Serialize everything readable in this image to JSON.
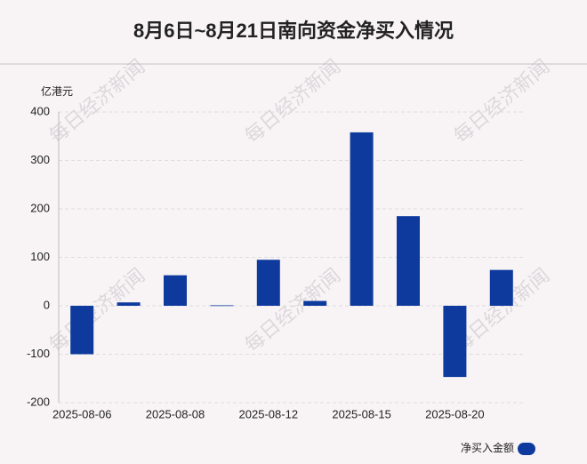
{
  "chart_data": {
    "type": "bar",
    "title": "8月6日~8月21日南向资金净买入情况",
    "y_label": "亿港元",
    "watermark": "每日经济新闻",
    "categories": [
      "2025-08-06",
      null,
      "2025-08-08",
      null,
      "2025-08-12",
      null,
      "2025-08-15",
      null,
      "2025-08-20",
      null
    ],
    "series": [
      {
        "name": "净买入金额",
        "color": "#0e3a9e",
        "values": [
          -100,
          7,
          63,
          1,
          95,
          10,
          358,
          185,
          -147,
          74
        ]
      }
    ],
    "ylim": [
      -200,
      400
    ],
    "yticks": [
      -200,
      -100,
      0,
      100,
      200,
      300,
      400
    ],
    "grid": true,
    "legend": "bottom-right"
  }
}
